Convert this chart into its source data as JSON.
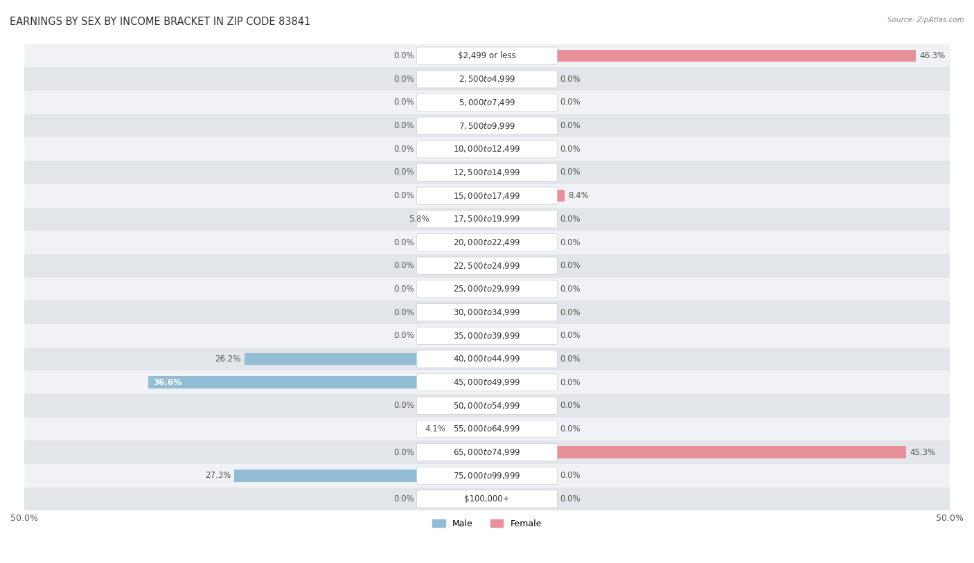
{
  "title": "EARNINGS BY SEX BY INCOME BRACKET IN ZIP CODE 83841",
  "source": "Source: ZipAtlas.com",
  "categories": [
    "$2,499 or less",
    "$2,500 to $4,999",
    "$5,000 to $7,499",
    "$7,500 to $9,999",
    "$10,000 to $12,499",
    "$12,500 to $14,999",
    "$15,000 to $17,499",
    "$17,500 to $19,999",
    "$20,000 to $22,499",
    "$22,500 to $24,999",
    "$25,000 to $29,999",
    "$30,000 to $34,999",
    "$35,000 to $39,999",
    "$40,000 to $44,999",
    "$45,000 to $49,999",
    "$50,000 to $54,999",
    "$55,000 to $64,999",
    "$65,000 to $74,999",
    "$75,000 to $99,999",
    "$100,000+"
  ],
  "male_values": [
    0.0,
    0.0,
    0.0,
    0.0,
    0.0,
    0.0,
    0.0,
    5.8,
    0.0,
    0.0,
    0.0,
    0.0,
    0.0,
    26.2,
    36.6,
    0.0,
    4.1,
    0.0,
    27.3,
    0.0
  ],
  "female_values": [
    46.3,
    0.0,
    0.0,
    0.0,
    0.0,
    0.0,
    8.4,
    0.0,
    0.0,
    0.0,
    0.0,
    0.0,
    0.0,
    0.0,
    0.0,
    0.0,
    0.0,
    45.3,
    0.0,
    0.0
  ],
  "male_color": "#93bdd4",
  "female_color": "#e8909a",
  "male_label": "Male",
  "female_label": "Female",
  "xlim": 50.0,
  "bar_height": 0.52,
  "row_light_color": "#f0f2f5",
  "row_dark_color": "#e2e5ea",
  "title_fontsize": 10.5,
  "label_fontsize": 8.5,
  "tick_fontsize": 9,
  "cat_fontsize": 8.5
}
